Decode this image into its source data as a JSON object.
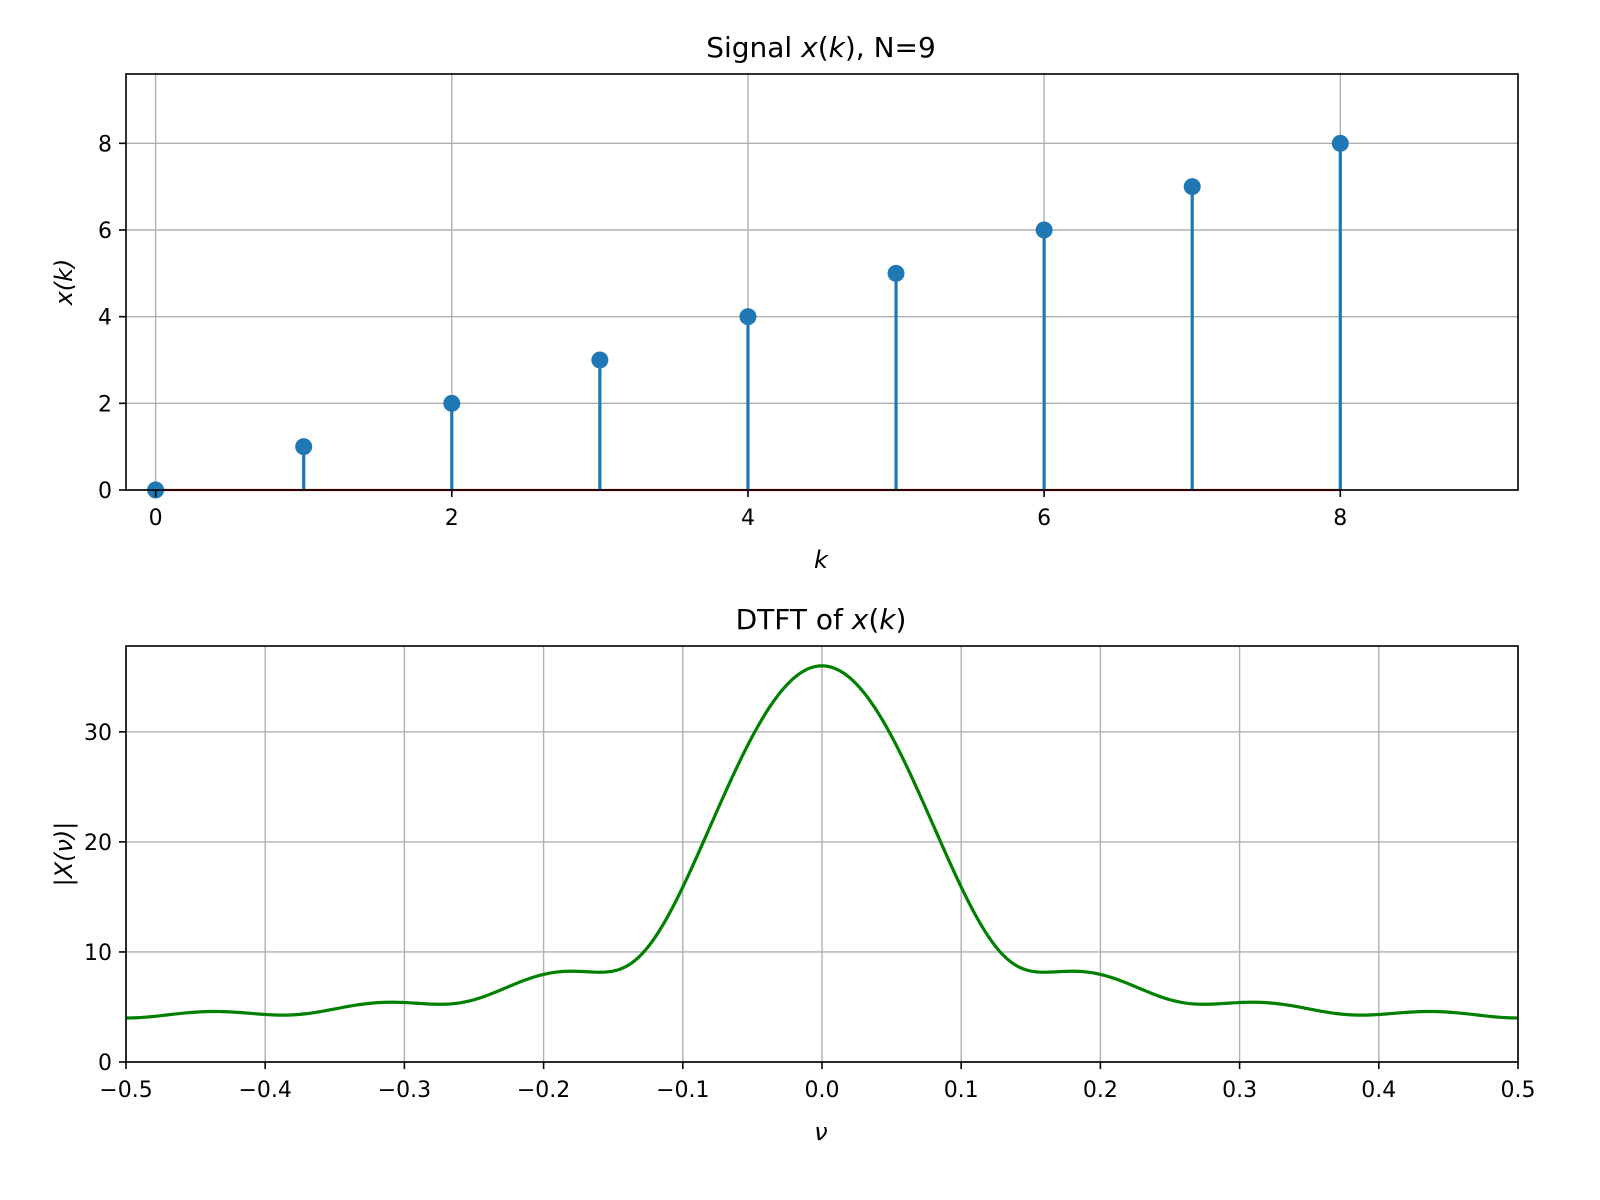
{
  "chart_data": [
    {
      "type": "stem",
      "title": "Signal x(k), N=9",
      "title_parts": [
        "Signal ",
        "x",
        "(",
        "k",
        "), N=9"
      ],
      "xlabel": "k",
      "ylabel": "x(k)",
      "xlim": [
        -0.2,
        9.2
      ],
      "ylim": [
        0,
        9.6
      ],
      "xticks": [
        0,
        2,
        4,
        6,
        8
      ],
      "xtick_labels": [
        "0",
        "2",
        "4",
        "6",
        "8"
      ],
      "yticks": [
        0,
        2,
        4,
        6,
        8
      ],
      "ytick_labels": [
        "0",
        "2",
        "4",
        "6",
        "8"
      ],
      "grid": true,
      "baseline": 0,
      "baseline_color": "#d62728",
      "series": [
        {
          "color": "#1f77b4",
          "x": [
            0,
            1,
            2,
            3,
            4,
            5,
            6,
            7,
            8
          ],
          "y": [
            0,
            1,
            2,
            3,
            4,
            5,
            6,
            7,
            8
          ]
        }
      ]
    },
    {
      "type": "line",
      "title": "DTFT of x(k)",
      "title_parts": [
        "DTFT of ",
        "x",
        "(",
        "k",
        ")"
      ],
      "xlabel": "ν",
      "ylabel": "|X(ν)|",
      "xlim": [
        -0.5,
        0.5
      ],
      "ylim": [
        0,
        37.8
      ],
      "xticks": [
        -0.5,
        -0.4,
        -0.3,
        -0.2,
        -0.1,
        0.0,
        0.1,
        0.2,
        0.3,
        0.4,
        0.5
      ],
      "xtick_labels": [
        "−0.5",
        "−0.4",
        "−0.3",
        "−0.2",
        "−0.1",
        "0.0",
        "0.1",
        "0.2",
        "0.3",
        "0.4",
        "0.5"
      ],
      "yticks": [
        0,
        10,
        20,
        30
      ],
      "ytick_labels": [
        "0",
        "10",
        "20",
        "30"
      ],
      "grid": true,
      "series": [
        {
          "color": "#008000",
          "signal": [
            0,
            1,
            2,
            3,
            4,
            5,
            6,
            7,
            8
          ],
          "samples": 401
        }
      ]
    }
  ]
}
